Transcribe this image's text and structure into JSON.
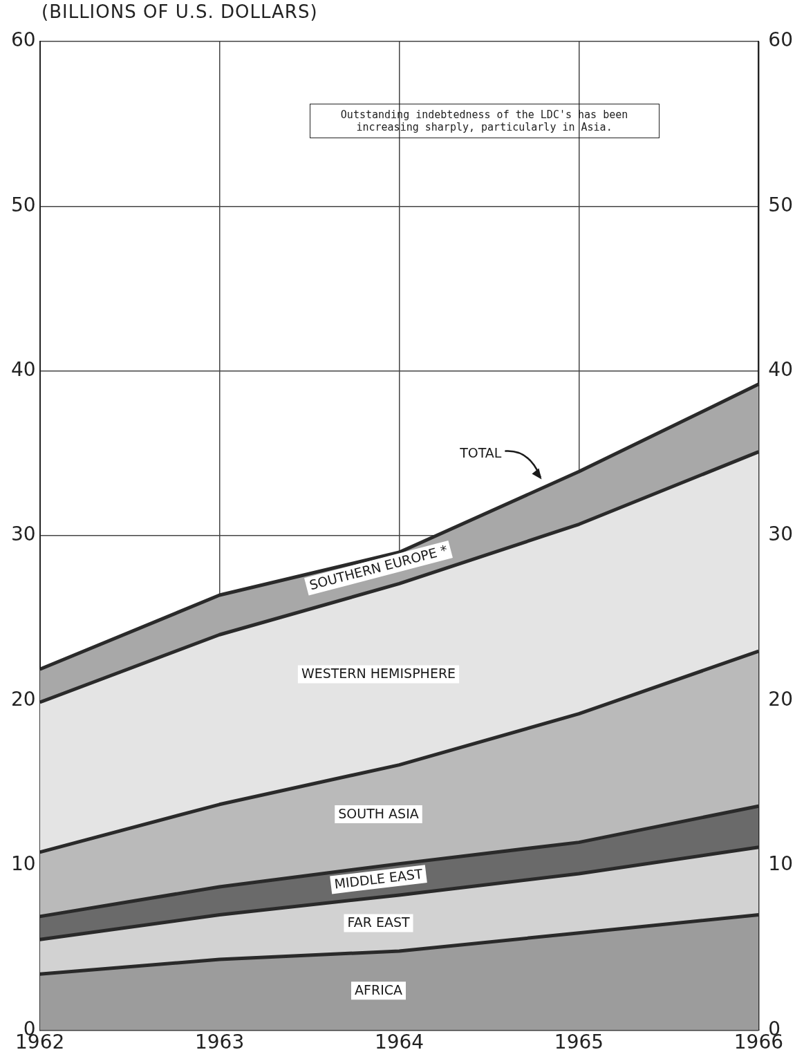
{
  "chart_data": {
    "type": "area",
    "stacked": true,
    "ylabel": "(BILLIONS OF U.S. DOLLARS)",
    "categories": [
      "1962",
      "1963",
      "1964",
      "1965",
      "1966"
    ],
    "series": [
      {
        "name": "AFRICA",
        "color": "#9c9c9c",
        "values": [
          3.4,
          4.3,
          4.8,
          5.9,
          7.0
        ]
      },
      {
        "name": "FAR EAST",
        "color": "#d2d2d2",
        "values": [
          2.1,
          2.7,
          3.4,
          3.6,
          4.1
        ]
      },
      {
        "name": "MIDDLE EAST",
        "color": "#6a6a6a",
        "values": [
          1.4,
          1.7,
          1.9,
          1.9,
          2.5
        ]
      },
      {
        "name": "SOUTH ASIA",
        "color": "#bababa",
        "values": [
          3.9,
          5.0,
          6.0,
          7.8,
          9.4
        ]
      },
      {
        "name": "WESTERN HEMISPHERE",
        "color": "#e4e4e4",
        "values": [
          9.1,
          10.3,
          11.0,
          11.5,
          12.1
        ]
      },
      {
        "name": "SOUTHERN EUROPE *",
        "color": "#a8a8a8",
        "values": [
          2.0,
          2.4,
          1.9,
          3.2,
          4.1
        ]
      }
    ],
    "ylim": [
      0,
      60
    ],
    "yticks": [
      0,
      10,
      20,
      30,
      40,
      50,
      60
    ],
    "y2lim": [
      0,
      60
    ],
    "y2ticks": [
      0,
      10,
      20,
      30,
      40,
      50,
      60
    ],
    "grid": true,
    "legend": false,
    "annotations": [
      "TOTAL",
      "Outstanding indebtedness of the LDC's has been increasing sharply, particularly in Asia."
    ]
  }
}
